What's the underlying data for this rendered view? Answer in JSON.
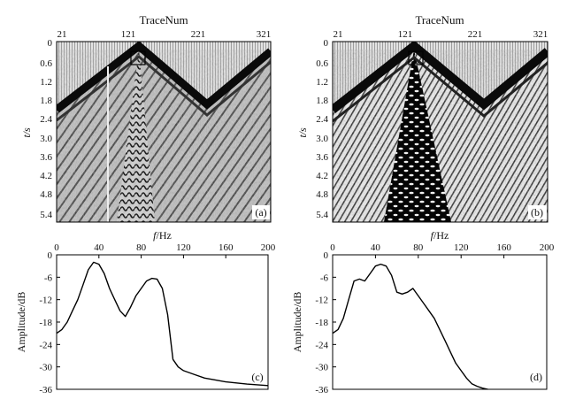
{
  "panels": [
    {
      "label": "(a)",
      "xlabel": "TraceNum",
      "ylabel": "t/s",
      "xticks": [
        "21",
        "121",
        "221",
        "321"
      ],
      "yticks": [
        "0",
        "0.6",
        "1.2",
        "1.8",
        "2.4",
        "3.0",
        "3.6",
        "4.2",
        "4.8",
        "5.4"
      ]
    },
    {
      "label": "(b)",
      "xlabel": "TraceNum",
      "ylabel": "t/s",
      "xticks": [
        "21",
        "121",
        "221",
        "321"
      ],
      "yticks": [
        "0",
        "0.6",
        "1.2",
        "1.8",
        "2.4",
        "3.0",
        "3.6",
        "4.2",
        "4.8",
        "5.4"
      ]
    }
  ],
  "chart_data": [
    {
      "type": "line",
      "label": "(c)",
      "xlabel": "f/Hz",
      "ylabel": "Amplitude/dB",
      "xticks": [
        "0",
        "40",
        "80",
        "120",
        "160",
        "200"
      ],
      "yticks": [
        "0",
        "-6",
        "-12",
        "-18",
        "-24",
        "-30",
        "-36"
      ],
      "xlim": [
        0,
        200
      ],
      "ylim": [
        -36,
        0
      ],
      "series": [
        {
          "name": "spectrum",
          "x": [
            0,
            5,
            10,
            15,
            20,
            25,
            30,
            35,
            40,
            45,
            50,
            55,
            60,
            65,
            70,
            75,
            80,
            85,
            90,
            95,
            100,
            105,
            110,
            115,
            120,
            130,
            140,
            150,
            160,
            170,
            180,
            190,
            200
          ],
          "y": [
            -21,
            -20,
            -18,
            -15,
            -12,
            -8,
            -4,
            -2,
            -2.5,
            -5,
            -9,
            -12,
            -15,
            -16.5,
            -14,
            -11,
            -9,
            -7,
            -6.3,
            -6.5,
            -9,
            -16,
            -28,
            -30,
            -31,
            -32,
            -33,
            -33.5,
            -34,
            -34.3,
            -34.6,
            -34.8,
            -35
          ]
        }
      ]
    },
    {
      "type": "line",
      "label": "(d)",
      "xlabel": "f/Hz",
      "ylabel": "Amplitude/dB",
      "xticks": [
        "0",
        "40",
        "80",
        "120",
        "160",
        "200"
      ],
      "yticks": [
        "0",
        "-6",
        "-12",
        "-18",
        "-24",
        "-30",
        "-36"
      ],
      "xlim": [
        0,
        200
      ],
      "ylim": [
        -36,
        0
      ],
      "series": [
        {
          "name": "spectrum",
          "x": [
            0,
            5,
            10,
            15,
            20,
            25,
            30,
            35,
            40,
            45,
            50,
            55,
            60,
            65,
            70,
            75,
            80,
            85,
            90,
            95,
            100,
            105,
            110,
            115,
            120,
            125,
            130,
            135,
            140,
            145
          ],
          "y": [
            -21,
            -20,
            -17,
            -12,
            -7,
            -6.5,
            -7,
            -5,
            -3,
            -2.5,
            -3,
            -5.5,
            -10,
            -10.5,
            -10,
            -9,
            -11,
            -13,
            -15,
            -17,
            -20,
            -23,
            -26,
            -29,
            -31,
            -33,
            -34.5,
            -35.2,
            -35.7,
            -36
          ]
        }
      ]
    }
  ]
}
